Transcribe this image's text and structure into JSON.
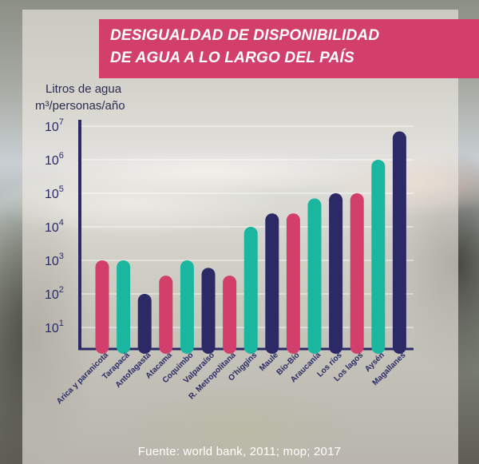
{
  "title_lines": [
    "DESIGUALDAD DE DISPONIBILIDAD",
    "DE AGUA A LO LARGO DEL PAÍS"
  ],
  "ylabel_lines": [
    "Litros de agua",
    "m³/personas/año"
  ],
  "source": "Fuente: world bank, 2011; mop; 2017",
  "colors": {
    "pink": "#d23f6a",
    "teal": "#1ab6a0",
    "navy": "#2b2a66",
    "title_bg": "#d23f6a",
    "axis": "#2b2a66"
  },
  "chart_data": {
    "type": "bar",
    "title": "DESIGUALDAD DE DISPONIBILIDAD DE AGUA A LO LARGO DEL PAÍS",
    "ylabel": "Litros de agua m³/personas/año",
    "xlabel": "",
    "yscale": "log",
    "ylim": [
      1,
      10000000
    ],
    "y_ticks": [
      {
        "exp": 1,
        "label_base": "10",
        "label_sup": "1"
      },
      {
        "exp": 2,
        "label_base": "10",
        "label_sup": "2"
      },
      {
        "exp": 3,
        "label_base": "10",
        "label_sup": "3"
      },
      {
        "exp": 4,
        "label_base": "10",
        "label_sup": "4"
      },
      {
        "exp": 5,
        "label_base": "10",
        "label_sup": "5"
      },
      {
        "exp": 6,
        "label_base": "10",
        "label_sup": "6"
      },
      {
        "exp": 7,
        "label_base": "10",
        "label_sup": "7"
      }
    ],
    "grid": true,
    "categories": [
      "Arica y paranicota",
      "Tarapacá",
      "Antofagasta",
      "Atacama",
      "Coquimbo",
      "Valparaíso",
      "R. Metropolitana",
      "O'higgins",
      "Maule",
      "Bío-Bío",
      "Araucanía",
      "Los ríos",
      "Los lagos",
      "Aysén",
      "Magallanes"
    ],
    "values": [
      1000,
      1000,
      100,
      350,
      1000,
      600,
      350,
      10000,
      25000,
      25000,
      70000,
      100000,
      100000,
      1000000,
      7000000
    ],
    "bar_colors": [
      "pink",
      "teal",
      "navy",
      "pink",
      "teal",
      "navy",
      "pink",
      "teal",
      "navy",
      "pink",
      "teal",
      "navy",
      "pink",
      "teal",
      "navy"
    ]
  }
}
